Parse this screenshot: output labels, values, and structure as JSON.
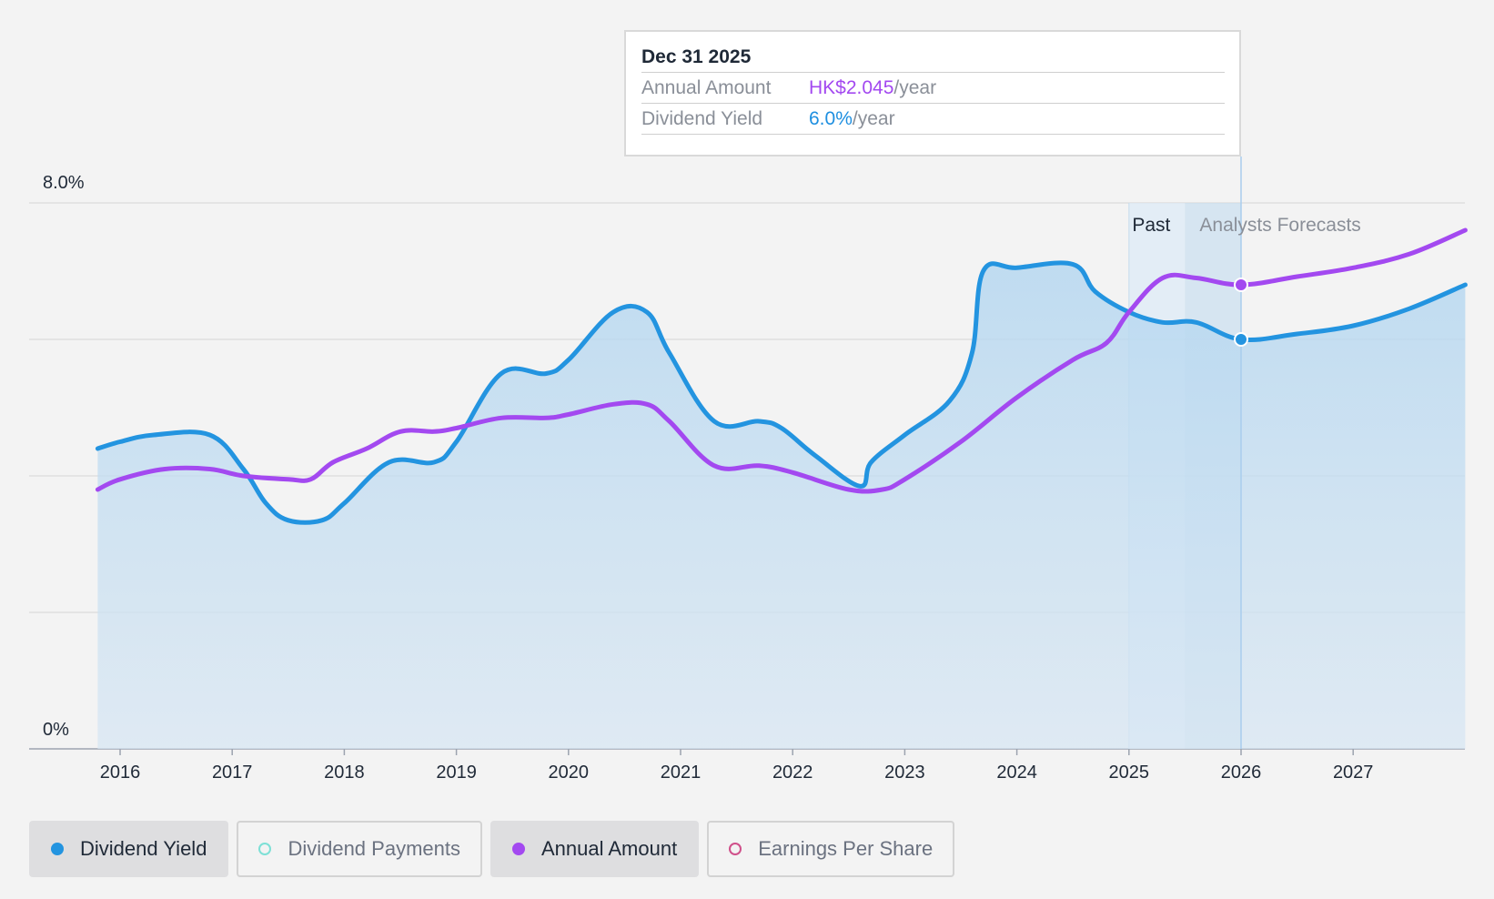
{
  "chart_data": {
    "type": "line",
    "y_axis": {
      "top_label": "8.0%",
      "bottom_label": "0%",
      "min": 0,
      "max": 8
    },
    "x_ticks": [
      "2016",
      "2017",
      "2018",
      "2019",
      "2020",
      "2021",
      "2022",
      "2023",
      "2024",
      "2025",
      "2026",
      "2027"
    ],
    "x_range": [
      2015.3,
      2028.0
    ],
    "regions": {
      "past_label": "Past",
      "forecast_label": "Analysts Forecasts",
      "past_start": 2025.0,
      "forecast_start": 2025.5,
      "cursor": 2026.0
    },
    "series": [
      {
        "name": "Dividend Yield",
        "color": "#2394e0",
        "filled": true,
        "points": [
          [
            2015.8,
            4.4
          ],
          [
            2016.0,
            4.5
          ],
          [
            2016.3,
            4.6
          ],
          [
            2016.8,
            4.6
          ],
          [
            2017.1,
            4.1
          ],
          [
            2017.3,
            3.6
          ],
          [
            2017.5,
            3.35
          ],
          [
            2017.8,
            3.35
          ],
          [
            2018.0,
            3.6
          ],
          [
            2018.4,
            4.2
          ],
          [
            2018.8,
            4.2
          ],
          [
            2019.0,
            4.5
          ],
          [
            2019.4,
            5.5
          ],
          [
            2019.8,
            5.5
          ],
          [
            2020.0,
            5.7
          ],
          [
            2020.4,
            6.4
          ],
          [
            2020.7,
            6.4
          ],
          [
            2020.9,
            5.8
          ],
          [
            2021.3,
            4.8
          ],
          [
            2021.7,
            4.8
          ],
          [
            2021.9,
            4.7
          ],
          [
            2022.2,
            4.3
          ],
          [
            2022.6,
            3.85
          ],
          [
            2022.7,
            4.2
          ],
          [
            2023.0,
            4.6
          ],
          [
            2023.4,
            5.1
          ],
          [
            2023.6,
            5.8
          ],
          [
            2023.7,
            7.0
          ],
          [
            2024.0,
            7.05
          ],
          [
            2024.5,
            7.1
          ],
          [
            2024.7,
            6.7
          ],
          [
            2025.0,
            6.4
          ],
          [
            2025.3,
            6.25
          ],
          [
            2025.6,
            6.25
          ],
          [
            2026.0,
            6.0
          ],
          [
            2026.5,
            6.08
          ],
          [
            2027.0,
            6.2
          ],
          [
            2027.5,
            6.45
          ],
          [
            2028.0,
            6.8
          ]
        ]
      },
      {
        "name": "Annual Amount",
        "color": "#a349f0",
        "filled": false,
        "points": [
          [
            2015.8,
            3.8
          ],
          [
            2016.0,
            3.95
          ],
          [
            2016.4,
            4.1
          ],
          [
            2016.8,
            4.1
          ],
          [
            2017.1,
            4.0
          ],
          [
            2017.5,
            3.95
          ],
          [
            2017.7,
            3.95
          ],
          [
            2017.9,
            4.2
          ],
          [
            2018.2,
            4.4
          ],
          [
            2018.5,
            4.65
          ],
          [
            2018.8,
            4.65
          ],
          [
            2019.0,
            4.7
          ],
          [
            2019.4,
            4.85
          ],
          [
            2019.8,
            4.85
          ],
          [
            2020.0,
            4.9
          ],
          [
            2020.4,
            5.05
          ],
          [
            2020.7,
            5.05
          ],
          [
            2020.9,
            4.8
          ],
          [
            2021.3,
            4.15
          ],
          [
            2021.7,
            4.15
          ],
          [
            2022.0,
            4.05
          ],
          [
            2022.5,
            3.8
          ],
          [
            2022.8,
            3.8
          ],
          [
            2023.0,
            3.95
          ],
          [
            2023.5,
            4.5
          ],
          [
            2024.0,
            5.15
          ],
          [
            2024.5,
            5.7
          ],
          [
            2024.8,
            5.95
          ],
          [
            2025.0,
            6.4
          ],
          [
            2025.3,
            6.9
          ],
          [
            2025.6,
            6.9
          ],
          [
            2026.0,
            6.8
          ],
          [
            2026.5,
            6.92
          ],
          [
            2027.0,
            7.05
          ],
          [
            2027.5,
            7.25
          ],
          [
            2028.0,
            7.6
          ]
        ]
      }
    ],
    "markers": [
      {
        "series": "Annual Amount",
        "x": 2026.0,
        "y": 6.8
      },
      {
        "series": "Dividend Yield",
        "x": 2026.0,
        "y": 6.0
      }
    ]
  },
  "tooltip": {
    "date": "Dec 31 2025",
    "rows": [
      {
        "label": "Annual Amount",
        "value": "HK$2.045",
        "unit": "/year"
      },
      {
        "label": "Dividend Yield",
        "value": "6.0%",
        "unit": "/year"
      }
    ]
  },
  "legend": [
    {
      "label": "Dividend Yield",
      "color": "#2394e0",
      "active": true,
      "filled": true
    },
    {
      "label": "Dividend Payments",
      "color": "#7de0d6",
      "active": false,
      "filled": false
    },
    {
      "label": "Annual Amount",
      "color": "#a349f0",
      "active": true,
      "filled": true
    },
    {
      "label": "Earnings Per Share",
      "color": "#d0508a",
      "active": false,
      "filled": false
    }
  ]
}
